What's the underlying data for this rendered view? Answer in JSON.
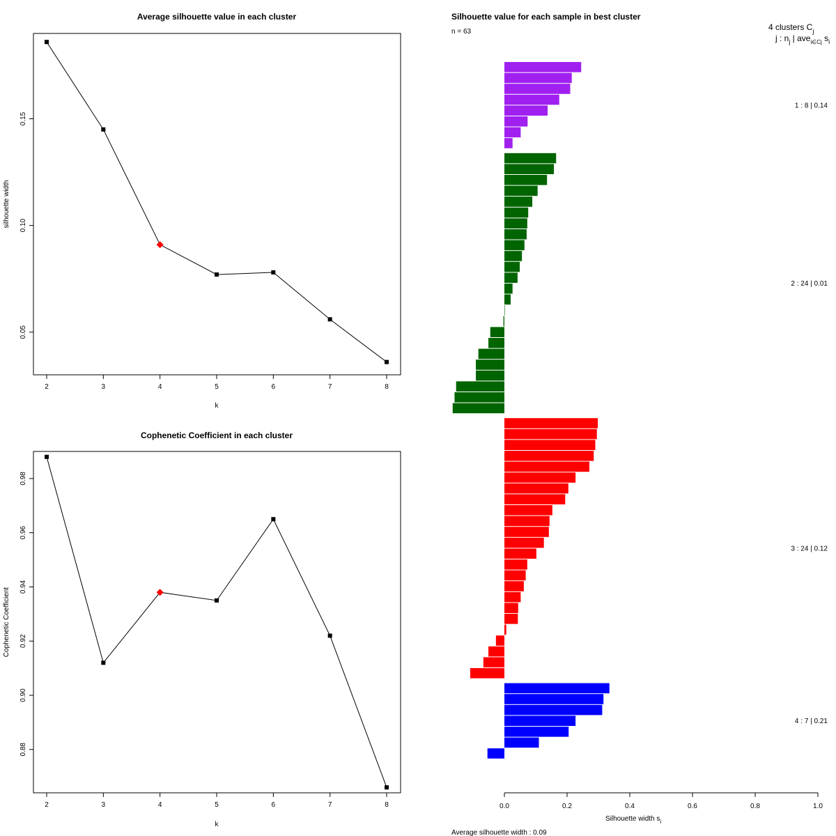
{
  "chart_data": [
    {
      "type": "line",
      "title": "Average silhouette value in each cluster",
      "xlabel": "k",
      "ylabel": "silhouette width",
      "x": [
        2,
        3,
        4,
        5,
        6,
        7,
        8
      ],
      "values": [
        0.186,
        0.145,
        0.091,
        0.077,
        0.078,
        0.056,
        0.036
      ],
      "highlight_index": 2,
      "xlim": [
        2,
        8
      ],
      "ylim": [
        0.03,
        0.19
      ],
      "yticks": [
        0.05,
        0.1,
        0.15
      ],
      "ytick_labels": [
        "0.05",
        "0.10",
        "0.15"
      ],
      "xtick_labels": [
        "2",
        "3",
        "4",
        "5",
        "6",
        "7",
        "8"
      ],
      "colors": {
        "line": "#000000",
        "point": "#000000",
        "highlight": "#ff0000"
      }
    },
    {
      "type": "line",
      "title": "Cophenetic Coefficient in each cluster",
      "xlabel": "k",
      "ylabel": "Cophenetic Coefficient",
      "x": [
        2,
        3,
        4,
        5,
        6,
        7,
        8
      ],
      "values": [
        0.988,
        0.912,
        0.938,
        0.935,
        0.965,
        0.922,
        0.866
      ],
      "highlight_index": 2,
      "xlim": [
        2,
        8
      ],
      "ylim": [
        0.864,
        0.99
      ],
      "yticks": [
        0.88,
        0.9,
        0.92,
        0.94,
        0.96,
        0.98
      ],
      "ytick_labels": [
        "0.88",
        "0.90",
        "0.92",
        "0.94",
        "0.96",
        "0.98"
      ],
      "xtick_labels": [
        "2",
        "3",
        "4",
        "5",
        "6",
        "7",
        "8"
      ],
      "colors": {
        "line": "#000000",
        "point": "#000000",
        "highlight": "#ff0000"
      }
    },
    {
      "type": "bar",
      "orientation": "horizontal",
      "title": "Silhouette value for each sample in best cluster",
      "n_label": "n = 63",
      "header_line1": "4  clusters  C",
      "header_line1_sub": "j",
      "header_line2": "j :  n",
      "header_line2_sub": "j",
      "header_line2_rest": " | ave",
      "header_line2_sub2": "i∈Cj",
      "header_line2_end": " s",
      "header_line2_sub3": "i",
      "xlabel": "Silhouette width s",
      "xlabel_sub": "i",
      "xlim": [
        0,
        1
      ],
      "xticks": [
        0,
        0.2,
        0.4,
        0.6,
        0.8,
        1.0
      ],
      "xtick_labels": [
        "0.0",
        "0.2",
        "0.4",
        "0.6",
        "0.8",
        "1.0"
      ],
      "footer": "Average silhouette width :  0.09",
      "clusters": [
        {
          "label": "1 :   8  |  0.14",
          "color": "#a020f0",
          "values": [
            0.245,
            0.215,
            0.21,
            0.175,
            0.138,
            0.074,
            0.052,
            0.026
          ]
        },
        {
          "label": "2 :   24  |  0.01",
          "color": "#006400",
          "values": [
            0.165,
            0.158,
            0.136,
            0.106,
            0.089,
            0.076,
            0.073,
            0.071,
            0.064,
            0.056,
            0.049,
            0.042,
            0.026,
            0.02,
            0.001,
            -0.003,
            -0.045,
            -0.051,
            -0.083,
            -0.091,
            -0.091,
            -0.154,
            -0.159,
            -0.165
          ]
        },
        {
          "label": "3 :   24  |  0.12",
          "color": "#ff0000",
          "values": [
            0.298,
            0.295,
            0.29,
            0.285,
            0.271,
            0.227,
            0.204,
            0.194,
            0.153,
            0.144,
            0.142,
            0.126,
            0.102,
            0.073,
            0.068,
            0.062,
            0.052,
            0.044,
            0.043,
            0.006,
            -0.027,
            -0.051,
            -0.067,
            -0.109
          ]
        },
        {
          "label": "4 :   7  |  0.21",
          "color": "#0000ff",
          "values": [
            0.335,
            0.316,
            0.312,
            0.227,
            0.205,
            0.11,
            -0.054
          ]
        }
      ]
    }
  ]
}
